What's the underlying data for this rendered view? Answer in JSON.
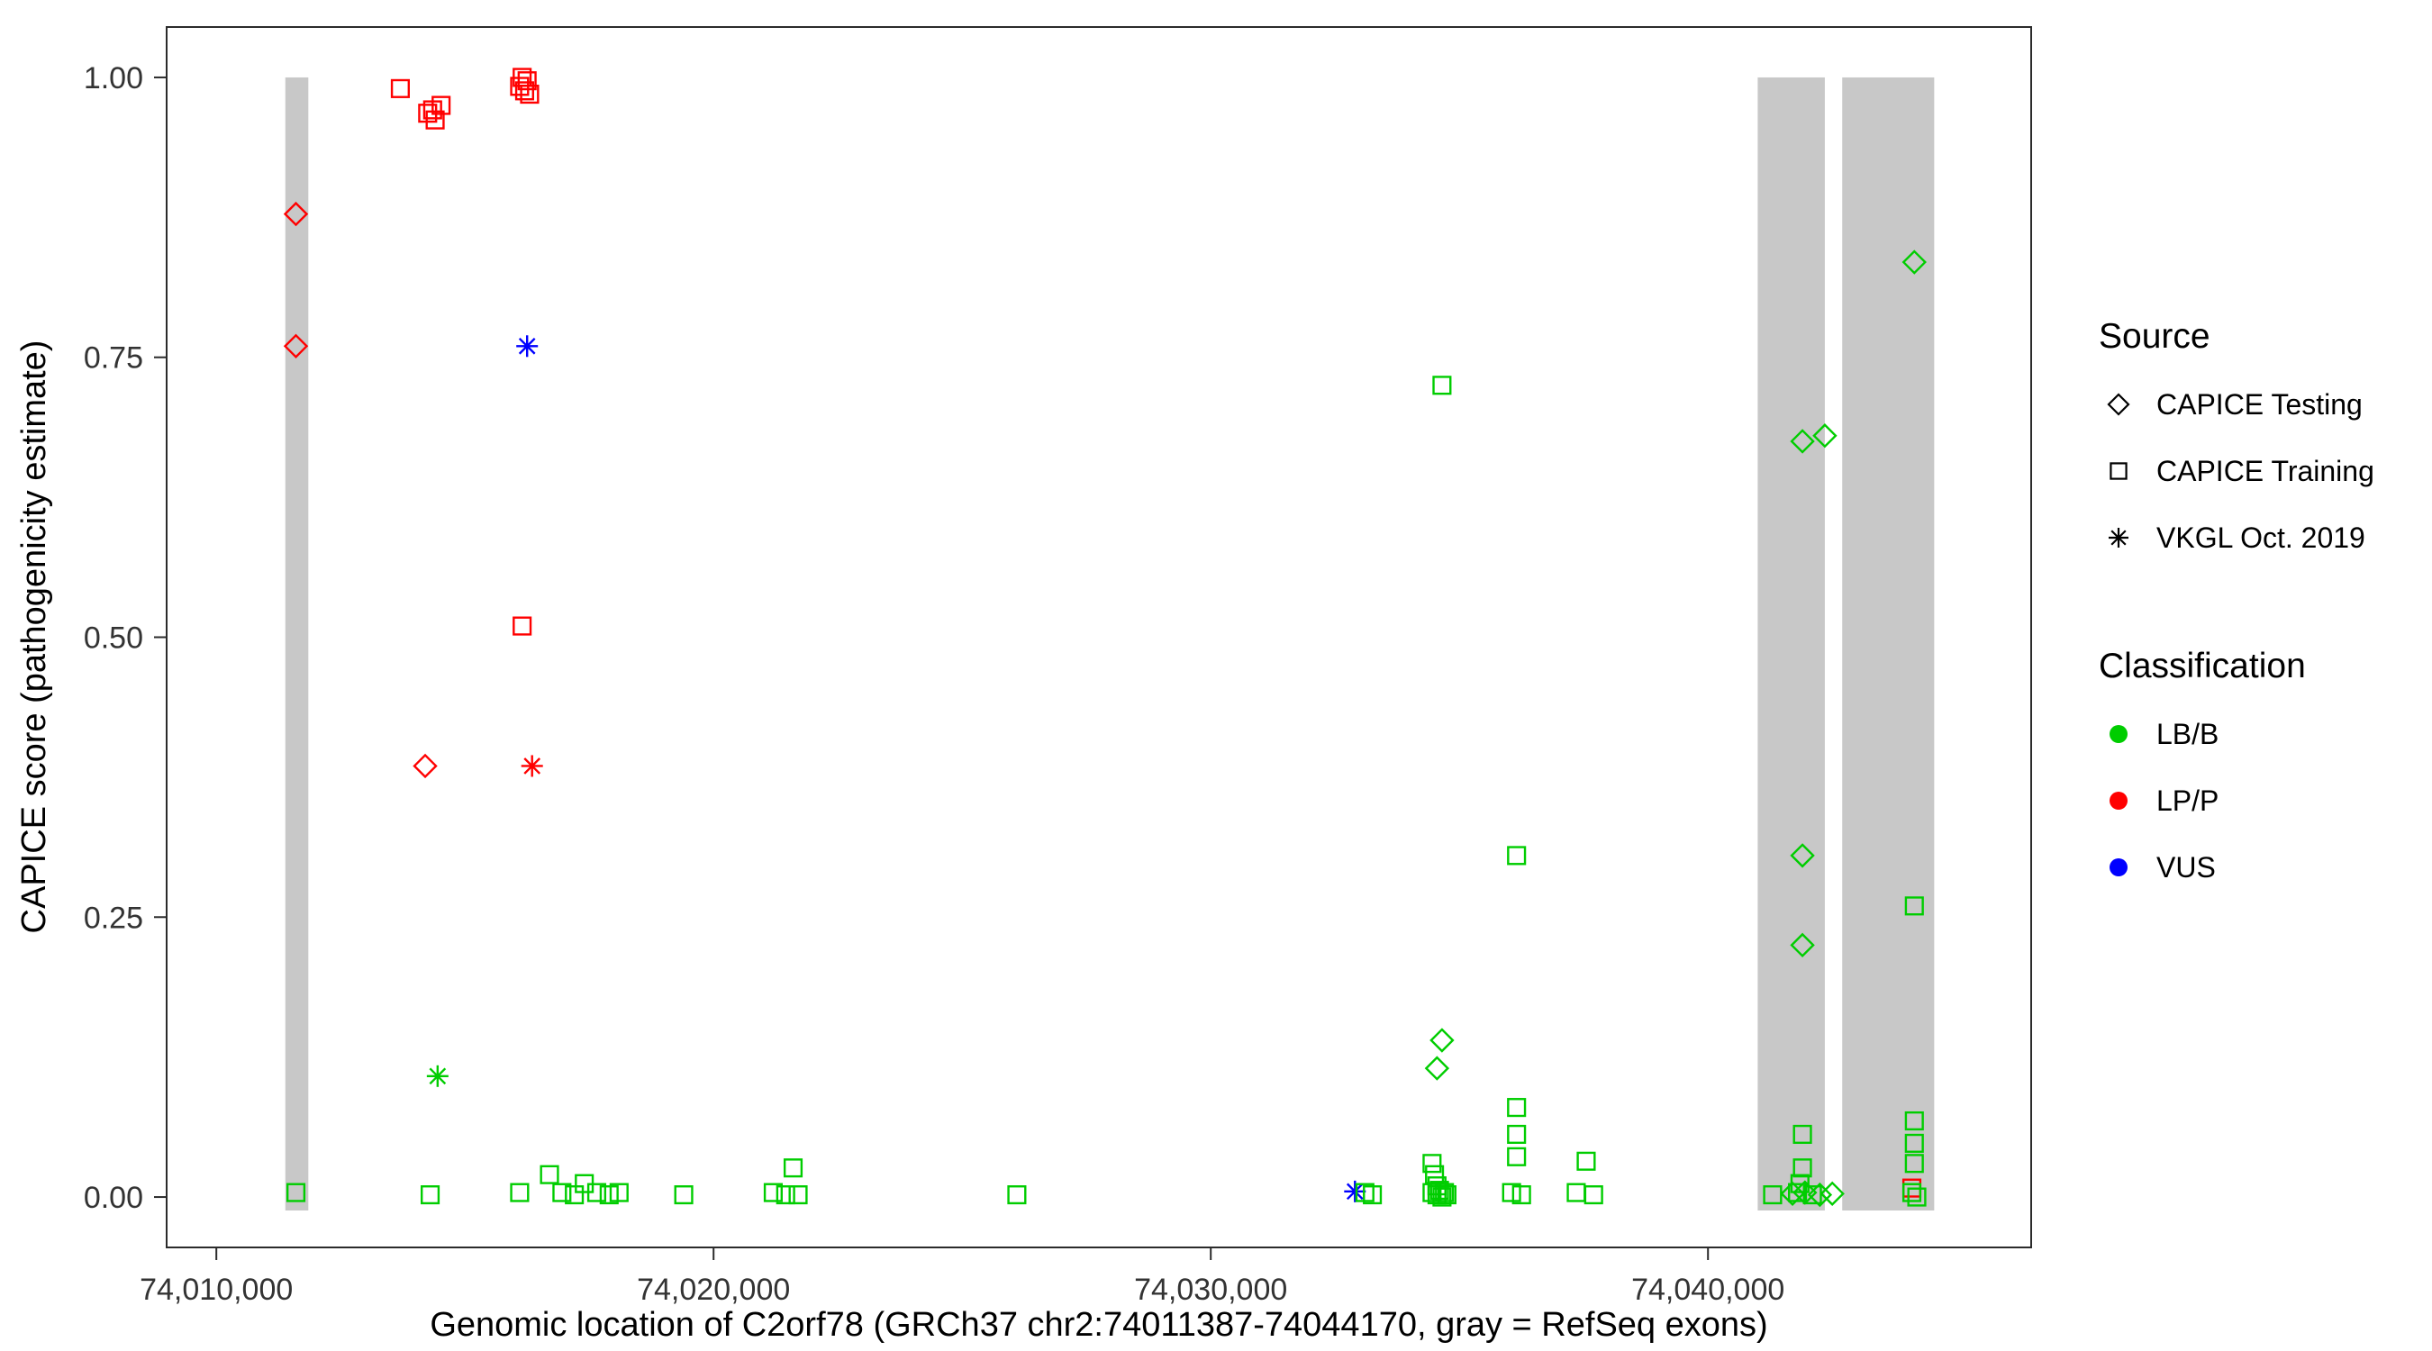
{
  "chart_data": {
    "type": "scatter",
    "title": "",
    "xlabel": "Genomic location of C2orf78 (GRCh37 chr2:74011387-74044170, gray = RefSeq exons)",
    "ylabel": "CAPICE score (pathogenicity estimate)",
    "xlim": [
      74009000,
      74046500
    ],
    "ylim": [
      -0.045,
      1.045
    ],
    "grid": false,
    "legend_position": "right",
    "x_ticks": [
      {
        "value": 74010000,
        "label": "74,010,000"
      },
      {
        "value": 74020000,
        "label": "74,020,000"
      },
      {
        "value": 74030000,
        "label": "74,030,000"
      },
      {
        "value": 74040000,
        "label": "74,040,000"
      }
    ],
    "y_ticks": [
      {
        "value": 0.0,
        "label": "0.00"
      },
      {
        "value": 0.25,
        "label": "0.25"
      },
      {
        "value": 0.5,
        "label": "0.50"
      },
      {
        "value": 0.75,
        "label": "0.75"
      },
      {
        "value": 1.0,
        "label": "1.00"
      }
    ],
    "exon_color": "#c8c8c8",
    "exons": [
      {
        "start": 74011387,
        "end": 74011850
      },
      {
        "start": 74041000,
        "end": 74042350
      },
      {
        "start": 74042700,
        "end": 74044550
      }
    ],
    "legend": {
      "source_title": "Source",
      "sources": [
        {
          "label": "CAPICE Testing",
          "shape": "diamond"
        },
        {
          "label": "CAPICE Training",
          "shape": "square"
        },
        {
          "label": "VKGL Oct. 2019",
          "shape": "asterisk"
        }
      ],
      "classification_title": "Classification",
      "classifications": [
        {
          "label": "LB/B",
          "color": "#00cd00"
        },
        {
          "label": "LP/P",
          "color": "#ff0000"
        },
        {
          "label": "VUS",
          "color": "#0000ff"
        }
      ]
    },
    "shape_by_source": {
      "CAPICE Testing": "diamond",
      "CAPICE Training": "square",
      "VKGL Oct. 2019": "asterisk"
    },
    "color_by_classification": {
      "LB/B": "#00cd00",
      "LP/P": "#ff0000",
      "VUS": "#0000ff"
    },
    "points": [
      {
        "x": 74011600,
        "y": 0.878,
        "source": "CAPICE Testing",
        "classification": "LP/P"
      },
      {
        "x": 74011600,
        "y": 0.76,
        "source": "CAPICE Testing",
        "classification": "LP/P"
      },
      {
        "x": 74014200,
        "y": 0.385,
        "source": "CAPICE Testing",
        "classification": "LP/P"
      },
      {
        "x": 74013700,
        "y": 0.99,
        "source": "CAPICE Training",
        "classification": "LP/P"
      },
      {
        "x": 74014250,
        "y": 0.968,
        "source": "CAPICE Training",
        "classification": "LP/P"
      },
      {
        "x": 74014400,
        "y": 0.962,
        "source": "CAPICE Training",
        "classification": "LP/P"
      },
      {
        "x": 74014520,
        "y": 0.975,
        "source": "CAPICE Training",
        "classification": "LP/P"
      },
      {
        "x": 74014350,
        "y": 0.971,
        "source": "CAPICE Training",
        "classification": "LP/P"
      },
      {
        "x": 74016150,
        "y": 1.0,
        "source": "CAPICE Training",
        "classification": "LP/P"
      },
      {
        "x": 74016250,
        "y": 0.997,
        "source": "CAPICE Training",
        "classification": "LP/P"
      },
      {
        "x": 74016100,
        "y": 0.992,
        "source": "CAPICE Training",
        "classification": "LP/P"
      },
      {
        "x": 74016300,
        "y": 0.985,
        "source": "CAPICE Training",
        "classification": "LP/P"
      },
      {
        "x": 74016200,
        "y": 0.988,
        "source": "CAPICE Training",
        "classification": "LP/P"
      },
      {
        "x": 74016150,
        "y": 0.51,
        "source": "CAPICE Training",
        "classification": "LP/P"
      },
      {
        "x": 74044100,
        "y": 0.008,
        "source": "CAPICE Training",
        "classification": "LP/P"
      },
      {
        "x": 74016350,
        "y": 0.385,
        "source": "VKGL Oct. 2019",
        "classification": "LP/P"
      },
      {
        "x": 74016250,
        "y": 0.76,
        "source": "VKGL Oct. 2019",
        "classification": "VUS"
      },
      {
        "x": 74032900,
        "y": 0.005,
        "source": "VKGL Oct. 2019",
        "classification": "VUS"
      },
      {
        "x": 74014450,
        "y": 0.108,
        "source": "VKGL Oct. 2019",
        "classification": "LB/B"
      },
      {
        "x": 74034650,
        "y": 0.14,
        "source": "CAPICE Testing",
        "classification": "LB/B"
      },
      {
        "x": 74034550,
        "y": 0.115,
        "source": "CAPICE Testing",
        "classification": "LB/B"
      },
      {
        "x": 74041900,
        "y": 0.675,
        "source": "CAPICE Testing",
        "classification": "LB/B"
      },
      {
        "x": 74042350,
        "y": 0.68,
        "source": "CAPICE Testing",
        "classification": "LB/B"
      },
      {
        "x": 74041900,
        "y": 0.305,
        "source": "CAPICE Testing",
        "classification": "LB/B"
      },
      {
        "x": 74041900,
        "y": 0.225,
        "source": "CAPICE Testing",
        "classification": "LB/B"
      },
      {
        "x": 74044150,
        "y": 0.835,
        "source": "CAPICE Testing",
        "classification": "LB/B"
      },
      {
        "x": 74041700,
        "y": 0.003,
        "source": "CAPICE Testing",
        "classification": "LB/B"
      },
      {
        "x": 74041950,
        "y": 0.004,
        "source": "CAPICE Testing",
        "classification": "LB/B"
      },
      {
        "x": 74042250,
        "y": 0.002,
        "source": "CAPICE Testing",
        "classification": "LB/B"
      },
      {
        "x": 74042500,
        "y": 0.003,
        "source": "CAPICE Testing",
        "classification": "LB/B"
      },
      {
        "x": 74011600,
        "y": 0.004,
        "source": "CAPICE Training",
        "classification": "LB/B"
      },
      {
        "x": 74014300,
        "y": 0.002,
        "source": "CAPICE Training",
        "classification": "LB/B"
      },
      {
        "x": 74016100,
        "y": 0.004,
        "source": "CAPICE Training",
        "classification": "LB/B"
      },
      {
        "x": 74016700,
        "y": 0.02,
        "source": "CAPICE Training",
        "classification": "LB/B"
      },
      {
        "x": 74016950,
        "y": 0.004,
        "source": "CAPICE Training",
        "classification": "LB/B"
      },
      {
        "x": 74017200,
        "y": 0.002,
        "source": "CAPICE Training",
        "classification": "LB/B"
      },
      {
        "x": 74017400,
        "y": 0.012,
        "source": "CAPICE Training",
        "classification": "LB/B"
      },
      {
        "x": 74017650,
        "y": 0.004,
        "source": "CAPICE Training",
        "classification": "LB/B"
      },
      {
        "x": 74017900,
        "y": 0.002,
        "source": "CAPICE Training",
        "classification": "LB/B"
      },
      {
        "x": 74018100,
        "y": 0.004,
        "source": "CAPICE Training",
        "classification": "LB/B"
      },
      {
        "x": 74019400,
        "y": 0.002,
        "source": "CAPICE Training",
        "classification": "LB/B"
      },
      {
        "x": 74021200,
        "y": 0.004,
        "source": "CAPICE Training",
        "classification": "LB/B"
      },
      {
        "x": 74021450,
        "y": 0.002,
        "source": "CAPICE Training",
        "classification": "LB/B"
      },
      {
        "x": 74021600,
        "y": 0.026,
        "source": "CAPICE Training",
        "classification": "LB/B"
      },
      {
        "x": 74021700,
        "y": 0.002,
        "source": "CAPICE Training",
        "classification": "LB/B"
      },
      {
        "x": 74026100,
        "y": 0.002,
        "source": "CAPICE Training",
        "classification": "LB/B"
      },
      {
        "x": 74033100,
        "y": 0.004,
        "source": "CAPICE Training",
        "classification": "LB/B"
      },
      {
        "x": 74033250,
        "y": 0.002,
        "source": "CAPICE Training",
        "classification": "LB/B"
      },
      {
        "x": 74034650,
        "y": 0.725,
        "source": "CAPICE Training",
        "classification": "LB/B"
      },
      {
        "x": 74034450,
        "y": 0.03,
        "source": "CAPICE Training",
        "classification": "LB/B"
      },
      {
        "x": 74034500,
        "y": 0.02,
        "source": "CAPICE Training",
        "classification": "LB/B"
      },
      {
        "x": 74034550,
        "y": 0.01,
        "source": "CAPICE Training",
        "classification": "LB/B"
      },
      {
        "x": 74034450,
        "y": 0.004,
        "source": "CAPICE Training",
        "classification": "LB/B"
      },
      {
        "x": 74034550,
        "y": 0.002,
        "source": "CAPICE Training",
        "classification": "LB/B"
      },
      {
        "x": 74034650,
        "y": 0.0,
        "source": "CAPICE Training",
        "classification": "LB/B"
      },
      {
        "x": 74034700,
        "y": 0.004,
        "source": "CAPICE Training",
        "classification": "LB/B"
      },
      {
        "x": 74034750,
        "y": 0.002,
        "source": "CAPICE Training",
        "classification": "LB/B"
      },
      {
        "x": 74034600,
        "y": 0.006,
        "source": "CAPICE Training",
        "classification": "LB/B"
      },
      {
        "x": 74036150,
        "y": 0.305,
        "source": "CAPICE Training",
        "classification": "LB/B"
      },
      {
        "x": 74036150,
        "y": 0.08,
        "source": "CAPICE Training",
        "classification": "LB/B"
      },
      {
        "x": 74036150,
        "y": 0.056,
        "source": "CAPICE Training",
        "classification": "LB/B"
      },
      {
        "x": 74036150,
        "y": 0.036,
        "source": "CAPICE Training",
        "classification": "LB/B"
      },
      {
        "x": 74036050,
        "y": 0.004,
        "source": "CAPICE Training",
        "classification": "LB/B"
      },
      {
        "x": 74036250,
        "y": 0.002,
        "source": "CAPICE Training",
        "classification": "LB/B"
      },
      {
        "x": 74037550,
        "y": 0.032,
        "source": "CAPICE Training",
        "classification": "LB/B"
      },
      {
        "x": 74037350,
        "y": 0.004,
        "source": "CAPICE Training",
        "classification": "LB/B"
      },
      {
        "x": 74037700,
        "y": 0.002,
        "source": "CAPICE Training",
        "classification": "LB/B"
      },
      {
        "x": 74041300,
        "y": 0.002,
        "source": "CAPICE Training",
        "classification": "LB/B"
      },
      {
        "x": 74041900,
        "y": 0.056,
        "source": "CAPICE Training",
        "classification": "LB/B"
      },
      {
        "x": 74041900,
        "y": 0.026,
        "source": "CAPICE Training",
        "classification": "LB/B"
      },
      {
        "x": 74041850,
        "y": 0.012,
        "source": "CAPICE Training",
        "classification": "LB/B"
      },
      {
        "x": 74041800,
        "y": 0.004,
        "source": "CAPICE Training",
        "classification": "LB/B"
      },
      {
        "x": 74042100,
        "y": 0.002,
        "source": "CAPICE Training",
        "classification": "LB/B"
      },
      {
        "x": 74044150,
        "y": 0.26,
        "source": "CAPICE Training",
        "classification": "LB/B"
      },
      {
        "x": 74044150,
        "y": 0.068,
        "source": "CAPICE Training",
        "classification": "LB/B"
      },
      {
        "x": 74044150,
        "y": 0.048,
        "source": "CAPICE Training",
        "classification": "LB/B"
      },
      {
        "x": 74044150,
        "y": 0.03,
        "source": "CAPICE Training",
        "classification": "LB/B"
      },
      {
        "x": 74044100,
        "y": 0.004,
        "source": "CAPICE Training",
        "classification": "LB/B"
      },
      {
        "x": 74044200,
        "y": 0.0,
        "source": "CAPICE Training",
        "classification": "LB/B"
      }
    ]
  }
}
